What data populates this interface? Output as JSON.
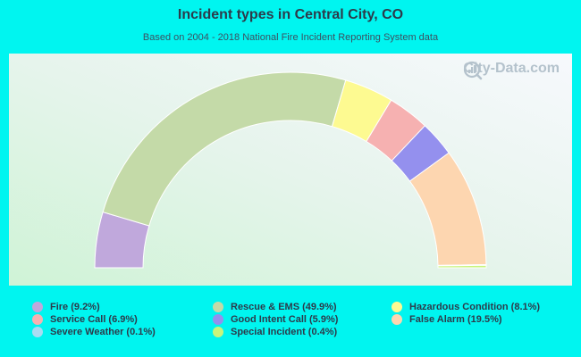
{
  "header": {
    "title": "Incident types in Central City, CO",
    "subtitle": "Based on 2004 - 2018 National Fire Incident Reporting System data"
  },
  "watermark": {
    "text": "City-Data.com",
    "icon": "magnifier-chart-icon"
  },
  "colors": {
    "page_background": "#00f5f0"
  },
  "chart_data": {
    "type": "pie",
    "shape": "semicircle-donut",
    "title": "Incident types in Central City, CO",
    "subtitle": "Based on 2004 - 2018 National Fire Incident Reporting System data",
    "slices": [
      {
        "label": "Fire",
        "value": 9.2,
        "legend": "Fire (9.2%)",
        "color": "#c0a8dc"
      },
      {
        "label": "Rescue & EMS",
        "value": 49.9,
        "legend": "Rescue & EMS (49.9%)",
        "color": "#c4daa8"
      },
      {
        "label": "Hazardous Condition",
        "value": 8.1,
        "legend": "Hazardous Condition (8.1%)",
        "color": "#fdfa91"
      },
      {
        "label": "Service Call",
        "value": 6.9,
        "legend": "Service Call (6.9%)",
        "color": "#f6b1b1"
      },
      {
        "label": "Good Intent Call",
        "value": 5.9,
        "legend": "Good Intent Call (5.9%)",
        "color": "#9490ee"
      },
      {
        "label": "False Alarm",
        "value": 19.5,
        "legend": "False Alarm (19.5%)",
        "color": "#fdd6b0"
      },
      {
        "label": "Severe Weather",
        "value": 0.1,
        "legend": "Severe Weather (0.1%)",
        "color": "#a8dcf2"
      },
      {
        "label": "Special Incident",
        "value": 0.4,
        "legend": "Special Incident (0.4%)",
        "color": "#c8f47c"
      }
    ],
    "legend_order": [
      0,
      1,
      2,
      3,
      4,
      5,
      6,
      7
    ],
    "legend_placement": "bottom"
  }
}
